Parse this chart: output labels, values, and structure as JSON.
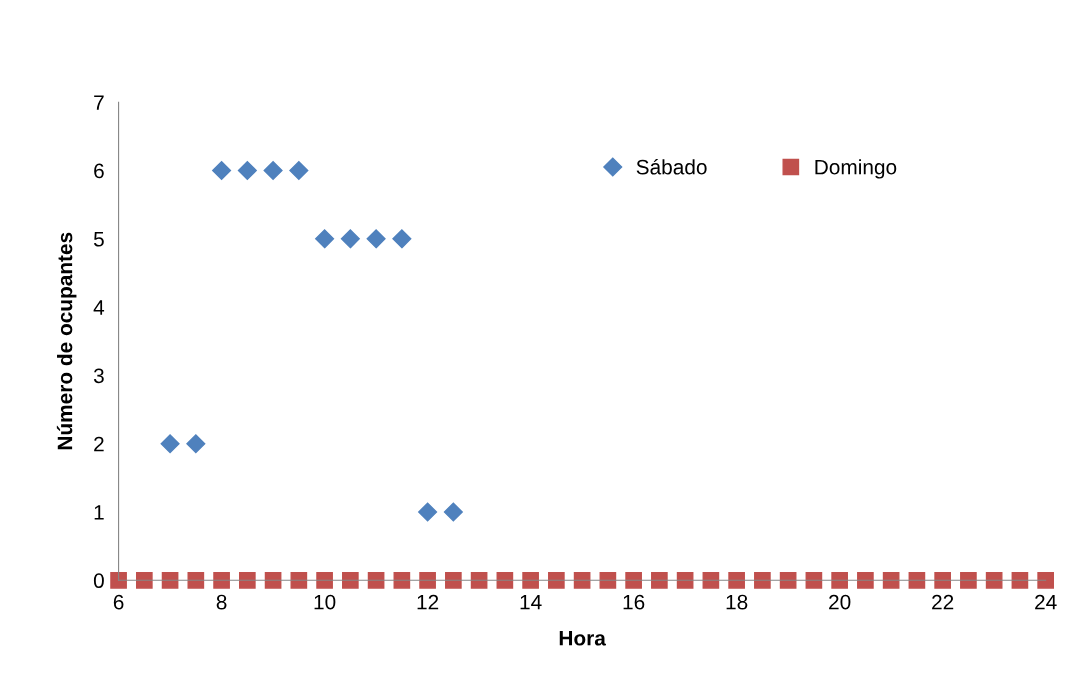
{
  "chart_data": {
    "type": "scatter",
    "xlabel": "Hora",
    "ylabel": "Número de ocupantes",
    "xlim": [
      6,
      24
    ],
    "xticks": [
      6,
      8,
      10,
      12,
      14,
      16,
      18,
      20,
      22,
      24
    ],
    "ylim": [
      0,
      7
    ],
    "yticks": [
      0,
      1,
      2,
      3,
      4,
      5,
      6,
      7
    ],
    "grid": false,
    "legend": "top right",
    "series": [
      {
        "name": "Sábado",
        "color": "#4f81bd",
        "marker": "diamond",
        "x": [
          7,
          7.5,
          8,
          8.5,
          9,
          9.5,
          10,
          10.5,
          11,
          11.5,
          12,
          12.5
        ],
        "values": [
          2,
          2,
          6,
          6,
          6,
          6,
          5,
          5,
          5,
          5,
          1,
          1
        ]
      },
      {
        "name": "Domingo",
        "color": "#c0504d",
        "marker": "square",
        "x": [
          6,
          6.5,
          7,
          7.5,
          8,
          8.5,
          9,
          9.5,
          10,
          10.5,
          11,
          11.5,
          12,
          12.5,
          13,
          13.5,
          14,
          14.5,
          15,
          15.5,
          16,
          16.5,
          17,
          17.5,
          18,
          18.5,
          19,
          19.5,
          20,
          20.5,
          21,
          21.5,
          22,
          22.5,
          23,
          23.5,
          24
        ],
        "values": [
          0,
          0,
          0,
          0,
          0,
          0,
          0,
          0,
          0,
          0,
          0,
          0,
          0,
          0,
          0,
          0,
          0,
          0,
          0,
          0,
          0,
          0,
          0,
          0,
          0,
          0,
          0,
          0,
          0,
          0,
          0,
          0,
          0,
          0,
          0,
          0,
          0
        ]
      }
    ]
  }
}
